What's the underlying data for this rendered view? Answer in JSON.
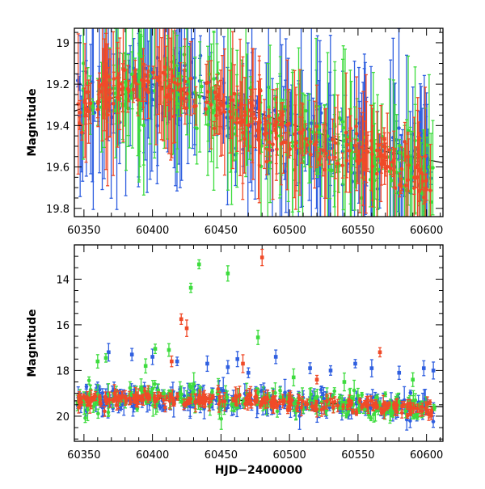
{
  "chart_data": [
    {
      "id": "top",
      "type": "scatter",
      "xlabel": "",
      "ylabel": "Magnitude",
      "xlim": [
        60343,
        60612
      ],
      "ylim": [
        19.84,
        18.93
      ],
      "y_inverted": true,
      "grid": false,
      "x_ticks": [
        60350,
        60400,
        60450,
        60500,
        60550,
        60600
      ],
      "y_ticks": [
        19.0,
        19.2,
        19.4,
        19.6,
        19.8
      ],
      "y_tick_labels": [
        "19",
        "19.2",
        "19.4",
        "19.6",
        "19.8"
      ],
      "series": [
        {
          "color": "#2f5fe0",
          "trend": [
            [
              60355,
              19.28
            ],
            [
              60380,
              19.22
            ],
            [
              60410,
              19.18
            ],
            [
              60440,
              19.27
            ],
            [
              60480,
              19.4
            ],
            [
              60520,
              19.48
            ],
            [
              60560,
              19.55
            ],
            [
              60605,
              19.64
            ]
          ],
          "spread": 0.08,
          "err": [
            0.03,
            0.55
          ]
        },
        {
          "color": "#3ddc3d",
          "trend": [
            [
              60355,
              19.27
            ],
            [
              60380,
              19.22
            ],
            [
              60410,
              19.19
            ],
            [
              60440,
              19.27
            ],
            [
              60480,
              19.4
            ],
            [
              60520,
              19.48
            ],
            [
              60560,
              19.55
            ],
            [
              60605,
              19.62
            ]
          ],
          "spread": 0.08,
          "err": [
            0.03,
            0.45
          ]
        },
        {
          "color": "#f04a28",
          "trend": [
            [
              60345,
              19.32
            ],
            [
              60370,
              19.22
            ],
            [
              60400,
              19.2
            ],
            [
              60440,
              19.28
            ],
            [
              60480,
              19.4
            ],
            [
              60520,
              19.48
            ],
            [
              60560,
              19.55
            ],
            [
              60605,
              19.65
            ]
          ],
          "spread": 0.06,
          "err": [
            0.03,
            0.35
          ]
        }
      ],
      "trend_line": {
        "color": "#000000",
        "points": [
          [
            60343,
            19.33
          ],
          [
            60400,
            19.2
          ],
          [
            60450,
            19.28
          ],
          [
            60500,
            19.39
          ],
          [
            60550,
            19.5
          ],
          [
            60612,
            19.58
          ]
        ]
      }
    },
    {
      "id": "bottom",
      "type": "scatter",
      "xlabel": "HJD−2400000",
      "ylabel": "Magnitude",
      "xlim": [
        60343,
        60612
      ],
      "ylim": [
        21.1,
        12.5
      ],
      "y_inverted": true,
      "grid": false,
      "x_ticks": [
        60350,
        60400,
        60450,
        60500,
        60550,
        60600
      ],
      "y_ticks": [
        14,
        16,
        18,
        20
      ],
      "y_tick_labels": [
        "14",
        "16",
        "18",
        "20"
      ],
      "series": [
        {
          "color": "#2f5fe0",
          "trend": [
            [
              60355,
              19.28
            ],
            [
              60410,
              19.18
            ],
            [
              60450,
              19.28
            ],
            [
              60500,
              19.4
            ],
            [
              60560,
              19.55
            ],
            [
              60605,
              19.64
            ]
          ],
          "spread": 0.25,
          "err": [
            0.1,
            0.6
          ],
          "outliers": [
            [
              60368,
              17.2
            ],
            [
              60385,
              17.3
            ],
            [
              60400,
              17.4
            ],
            [
              60418,
              17.6
            ],
            [
              60440,
              17.7
            ],
            [
              60455,
              17.85
            ],
            [
              60462,
              17.5
            ],
            [
              60470,
              18.1
            ],
            [
              60490,
              17.4
            ],
            [
              60515,
              17.9
            ],
            [
              60530,
              18.0
            ],
            [
              60548,
              17.7
            ],
            [
              60560,
              17.9
            ],
            [
              60580,
              18.1
            ],
            [
              60598,
              17.9
            ],
            [
              60605,
              18.0
            ]
          ]
        },
        {
          "color": "#3ddc3d",
          "trend": [
            [
              60355,
              19.27
            ],
            [
              60410,
              19.19
            ],
            [
              60450,
              19.28
            ],
            [
              60500,
              19.4
            ],
            [
              60560,
              19.55
            ],
            [
              60605,
              19.62
            ]
          ],
          "spread": 0.25,
          "err": [
            0.1,
            0.5
          ],
          "outliers": [
            [
              60360,
              17.6
            ],
            [
              60366,
              17.45
            ],
            [
              60395,
              17.8
            ],
            [
              60402,
              17.05
            ],
            [
              60412,
              17.1
            ],
            [
              60428,
              14.38
            ],
            [
              60434,
              13.35
            ],
            [
              60455,
              13.75
            ],
            [
              60477,
              16.55
            ],
            [
              60503,
              18.3
            ],
            [
              60540,
              18.5
            ],
            [
              60590,
              18.4
            ]
          ]
        },
        {
          "color": "#f04a28",
          "trend": [
            [
              60345,
              19.32
            ],
            [
              60400,
              19.2
            ],
            [
              60450,
              19.28
            ],
            [
              60500,
              19.4
            ],
            [
              60560,
              19.55
            ],
            [
              60605,
              19.65
            ]
          ],
          "spread": 0.15,
          "err": [
            0.1,
            0.4
          ],
          "outliers": [
            [
              60421,
              15.75
            ],
            [
              60425,
              16.15
            ],
            [
              60480,
              13.05
            ],
            [
              60414,
              17.6
            ],
            [
              60466,
              17.7
            ],
            [
              60520,
              18.4
            ],
            [
              60566,
              17.2
            ]
          ]
        }
      ],
      "trend_line": {
        "color": "#000000",
        "points": [
          [
            60343,
            19.33
          ],
          [
            60400,
            19.2
          ],
          [
            60450,
            19.28
          ],
          [
            60500,
            19.39
          ],
          [
            60550,
            19.5
          ],
          [
            60612,
            19.58
          ]
        ]
      }
    }
  ]
}
